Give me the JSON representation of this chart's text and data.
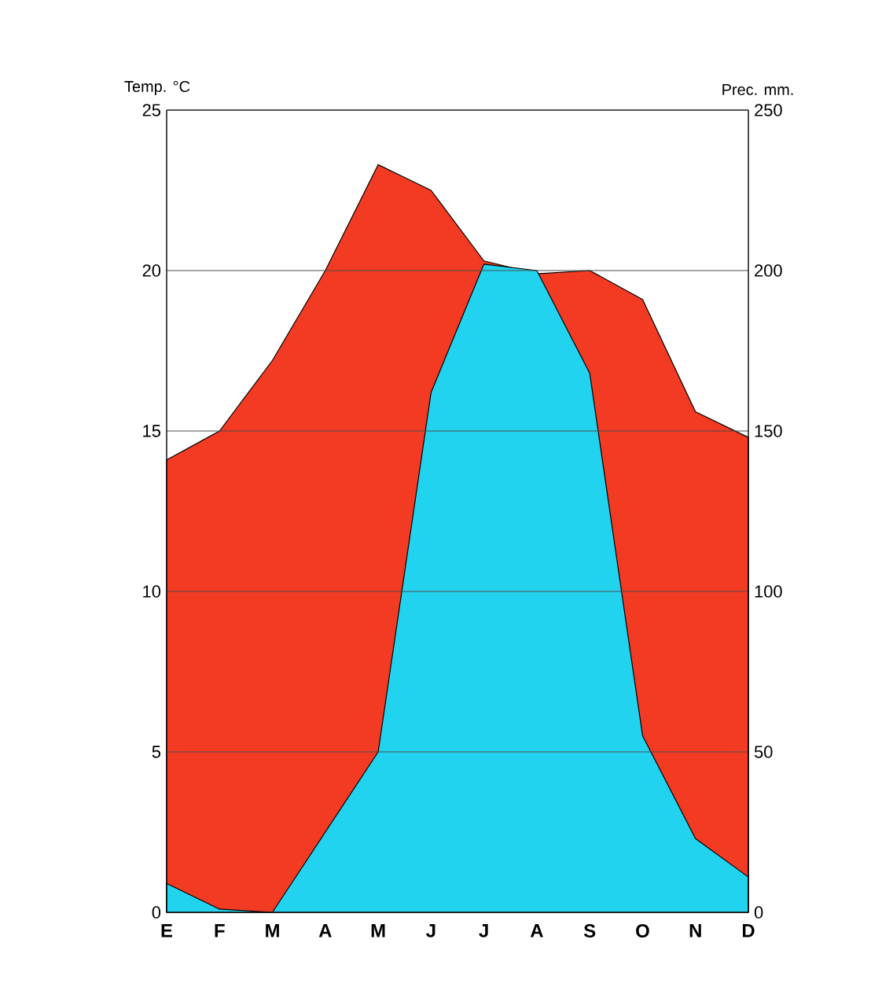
{
  "chart_data": {
    "type": "area",
    "ylabel": "Temp. °C",
    "y2label": "Prec. mm.",
    "categories": [
      "E",
      "F",
      "M",
      "A",
      "M",
      "J",
      "J",
      "A",
      "S",
      "O",
      "N",
      "D"
    ],
    "series": [
      {
        "color": "#f33a22",
        "values": [
          14.1,
          15.0,
          17.2,
          20.0,
          23.3,
          22.5,
          20.3,
          19.9,
          20.0,
          19.1,
          15.6,
          14.8
        ]
      },
      {
        "color": "#22d3f0",
        "axis": "y2",
        "values": [
          9,
          1,
          0,
          25,
          50,
          162,
          202,
          200,
          168,
          55,
          23,
          11
        ]
      }
    ],
    "ylim": [
      0,
      25
    ],
    "yticks": [
      0,
      5,
      10,
      15,
      20,
      25
    ],
    "y2lim": [
      0,
      250
    ],
    "y2ticks": [
      0,
      50,
      100,
      150,
      200,
      250
    ],
    "grid": "y"
  }
}
